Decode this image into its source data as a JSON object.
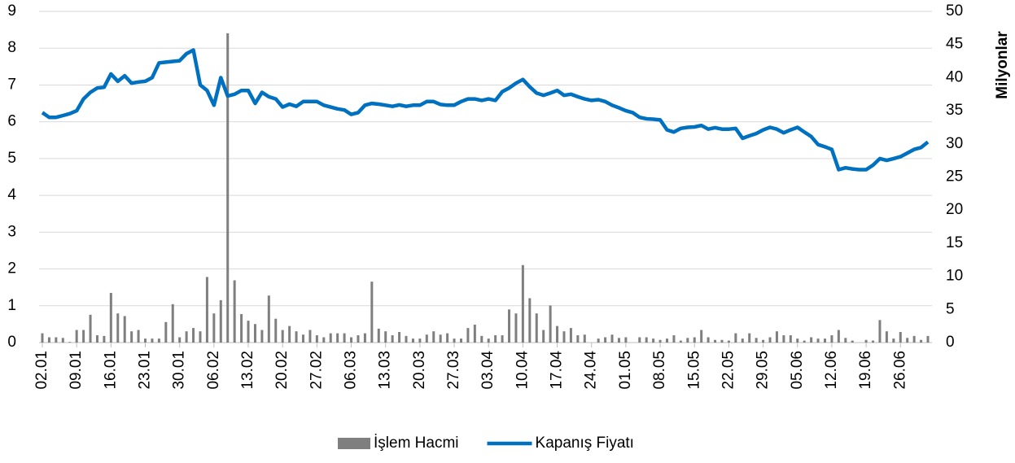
{
  "chart_data": {
    "type": "combo",
    "categories": [
      "02.01",
      null,
      null,
      null,
      null,
      "09.01",
      null,
      null,
      null,
      null,
      "16.01",
      null,
      null,
      null,
      null,
      "23.01",
      null,
      null,
      null,
      null,
      "30.01",
      null,
      null,
      null,
      null,
      "06.02",
      null,
      null,
      null,
      null,
      "13.02",
      null,
      null,
      null,
      null,
      "20.02",
      null,
      null,
      null,
      null,
      "27.02",
      null,
      null,
      null,
      null,
      "06.03",
      null,
      null,
      null,
      null,
      "13.03",
      null,
      null,
      null,
      null,
      "20.03",
      null,
      null,
      null,
      null,
      "27.03",
      null,
      null,
      null,
      null,
      "03.04",
      null,
      null,
      null,
      null,
      "10.04",
      null,
      null,
      null,
      null,
      "17.04",
      null,
      null,
      null,
      null,
      "24.04",
      null,
      null,
      null,
      null,
      "01.05",
      null,
      null,
      null,
      null,
      "08.05",
      null,
      null,
      null,
      null,
      "15.05",
      null,
      null,
      null,
      null,
      "22.05",
      null,
      null,
      null,
      null,
      "29.05",
      null,
      null,
      null,
      null,
      "05.06",
      null,
      null,
      null,
      null,
      "12.06",
      null,
      null,
      null,
      null,
      "19.06",
      null,
      null,
      null,
      null,
      "26.06",
      null,
      null,
      null,
      null
    ],
    "series": [
      {
        "name": "İşlem Hacmi",
        "type": "bar",
        "axis": "y2",
        "color": "#7f7f7f",
        "values": [
          1.4,
          0.8,
          0.8,
          0.7,
          0.1,
          1.9,
          1.9,
          4.2,
          1.1,
          1.0,
          7.5,
          4.4,
          4.0,
          1.7,
          1.9,
          0.6,
          0.6,
          0.6,
          3.1,
          5.8,
          0.8,
          1.7,
          2.2,
          1.7,
          9.9,
          4.4,
          6.4,
          46.7,
          9.4,
          4.3,
          3.3,
          2.8,
          1.9,
          7.1,
          3.6,
          1.9,
          2.5,
          1.7,
          1.2,
          1.9,
          1.1,
          0.8,
          1.4,
          1.4,
          1.4,
          0.8,
          1.1,
          1.4,
          9.2,
          2.1,
          1.7,
          1.1,
          1.6,
          1.0,
          0.6,
          0.6,
          1.2,
          1.7,
          1.2,
          1.4,
          0.6,
          0.6,
          2.2,
          2.7,
          1.0,
          0.6,
          1.1,
          1.1,
          5.0,
          4.4,
          11.7,
          6.7,
          4.4,
          1.9,
          5.6,
          2.5,
          1.7,
          2.2,
          1.1,
          1.2,
          0,
          0.6,
          0.8,
          1.2,
          0.7,
          0.8,
          0,
          0.8,
          0.8,
          0.6,
          0.4,
          0.6,
          1.1,
          0.3,
          0.7,
          0.8,
          1.9,
          0.8,
          0.4,
          0.4,
          0.3,
          1.4,
          0.6,
          1.4,
          0.7,
          0.4,
          0.8,
          1.7,
          1.1,
          1.1,
          0.6,
          0.3,
          0.8,
          0.6,
          0.6,
          1.1,
          1.9,
          0.7,
          0.3,
          0,
          0.4,
          0.3,
          3.4,
          1.7,
          0.6,
          1.6,
          0.7,
          1.0,
          0.4,
          1.0
        ]
      },
      {
        "name": "Kapanış Fiyatı",
        "type": "line",
        "color": "#0070c0",
        "values": [
          6.25,
          6.12,
          6.12,
          6.17,
          6.22,
          6.3,
          6.62,
          6.8,
          6.92,
          6.94,
          7.3,
          7.1,
          7.25,
          7.05,
          7.08,
          7.1,
          7.2,
          7.6,
          7.62,
          7.64,
          7.66,
          7.85,
          7.95,
          7.0,
          6.85,
          6.45,
          7.2,
          6.7,
          6.75,
          6.85,
          6.85,
          6.5,
          6.8,
          6.68,
          6.62,
          6.4,
          6.48,
          6.42,
          6.55,
          6.55,
          6.55,
          6.45,
          6.4,
          6.35,
          6.32,
          6.2,
          6.25,
          6.45,
          6.5,
          6.48,
          6.45,
          6.42,
          6.46,
          6.42,
          6.45,
          6.45,
          6.55,
          6.55,
          6.47,
          6.45,
          6.45,
          6.55,
          6.62,
          6.62,
          6.58,
          6.62,
          6.58,
          6.82,
          6.92,
          7.05,
          7.15,
          6.95,
          6.78,
          6.72,
          6.78,
          6.85,
          6.72,
          6.75,
          6.68,
          6.62,
          6.58,
          6.6,
          6.55,
          6.45,
          6.38,
          6.3,
          6.25,
          6.12,
          6.08,
          6.07,
          6.05,
          5.78,
          5.72,
          5.82,
          5.85,
          5.86,
          5.9,
          5.8,
          5.84,
          5.8,
          5.8,
          5.82,
          5.55,
          5.62,
          5.68,
          5.78,
          5.85,
          5.8,
          5.7,
          5.78,
          5.85,
          5.72,
          5.6,
          5.38,
          5.32,
          5.25,
          4.7,
          4.75,
          4.72,
          4.7,
          4.7,
          4.82,
          5.0,
          4.95,
          5.0,
          5.05,
          5.15,
          5.25,
          5.3,
          5.45
        ]
      }
    ],
    "ylim": [
      0,
      9
    ],
    "yticks": [
      0,
      1,
      2,
      3,
      4,
      5,
      6,
      7,
      8,
      9
    ],
    "y2lim": [
      0,
      50
    ],
    "y2ticks": [
      0,
      5,
      10,
      15,
      20,
      25,
      30,
      35,
      40,
      45,
      50
    ],
    "y2label": "Milyonlar",
    "grid": true,
    "legend": "bottom"
  }
}
